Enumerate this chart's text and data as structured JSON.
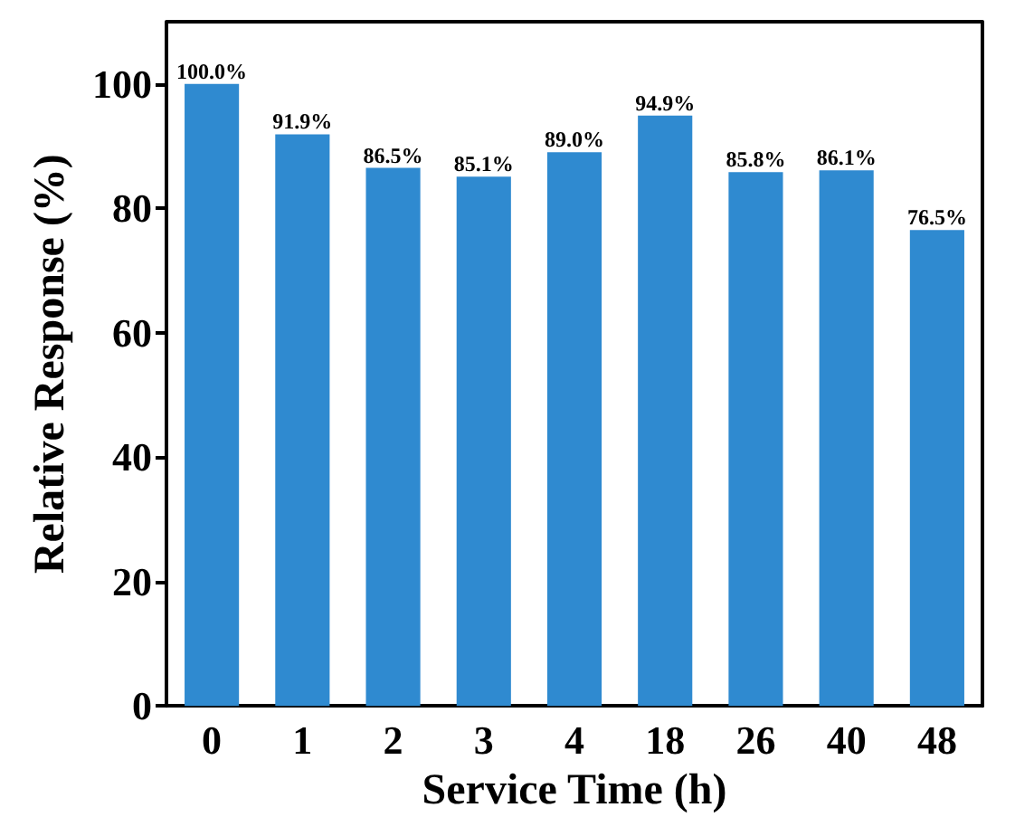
{
  "chart_data": {
    "type": "bar",
    "xlabel": "Service Time (h)",
    "ylabel": "Relative Response (%)",
    "categories": [
      "0",
      "1",
      "2",
      "3",
      "4",
      "18",
      "26",
      "40",
      "48"
    ],
    "values": [
      100.0,
      91.9,
      86.5,
      85.1,
      89.0,
      94.9,
      85.8,
      86.1,
      76.5
    ],
    "value_labels": [
      "100.0%",
      "91.9%",
      "86.5%",
      "85.1%",
      "89.0%",
      "94.9%",
      "85.8%",
      "86.1%",
      "76.5%"
    ],
    "color": "#2f8ad0",
    "ylim": [
      0,
      110
    ],
    "yticks": [
      0,
      20,
      40,
      60,
      80,
      100
    ],
    "grid": false
  }
}
